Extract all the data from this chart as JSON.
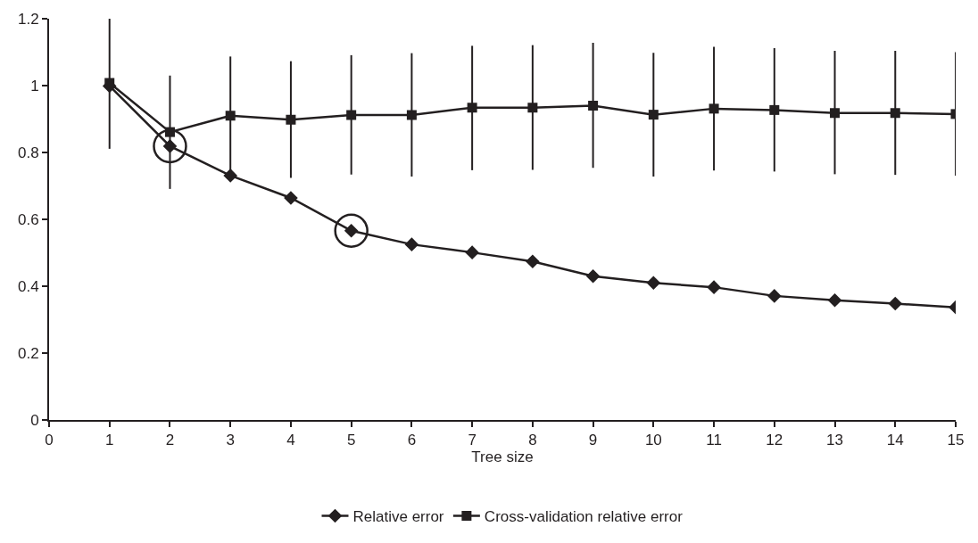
{
  "chart_data": {
    "type": "line",
    "xlabel": "Tree size",
    "x": [
      1,
      2,
      3,
      4,
      5,
      6,
      7,
      8,
      9,
      10,
      11,
      12,
      13,
      14,
      15
    ],
    "series": [
      {
        "name": "Relative error",
        "color": "#231f20",
        "marker": "diamond",
        "values": [
          0.999,
          0.819,
          0.731,
          0.664,
          0.566,
          0.525,
          0.501,
          0.474,
          0.43,
          0.41,
          0.397,
          0.371,
          0.358,
          0.348,
          0.337
        ]
      },
      {
        "name": "Cross-validation relative error",
        "color": "#231f20",
        "marker": "square",
        "values": [
          1.008,
          0.861,
          0.91,
          0.898,
          0.912,
          0.912,
          0.934,
          0.934,
          0.94,
          0.913,
          0.931,
          0.927,
          0.918,
          0.918,
          0.915
        ],
        "errors": [
          [
            0.811,
            1.2
          ],
          [
            0.691,
            1.03
          ],
          [
            0.715,
            1.087
          ],
          [
            0.724,
            1.073
          ],
          [
            0.734,
            1.091
          ],
          [
            0.728,
            1.097
          ],
          [
            0.747,
            1.119
          ],
          [
            0.748,
            1.121
          ],
          [
            0.754,
            1.128
          ],
          [
            0.728,
            1.098
          ],
          [
            0.746,
            1.116
          ],
          [
            0.743,
            1.112
          ],
          [
            0.735,
            1.104
          ],
          [
            0.733,
            1.104
          ],
          [
            0.731,
            1.1
          ]
        ]
      },
      {
        "type": "scatter",
        "color": "#231f20",
        "marker": "circle",
        "x": [
          2,
          5
        ],
        "values": [
          0.819,
          0.566
        ]
      }
    ],
    "xlim": [
      0,
      15
    ],
    "xticks": [
      0,
      1,
      2,
      3,
      4,
      5,
      6,
      7,
      8,
      9,
      10,
      11,
      12,
      13,
      14,
      15
    ],
    "ylim": [
      0,
      1.2
    ],
    "yticks": [
      0,
      0.2,
      0.4,
      0.6,
      0.8,
      1,
      1.2
    ],
    "legend": "bottom"
  }
}
